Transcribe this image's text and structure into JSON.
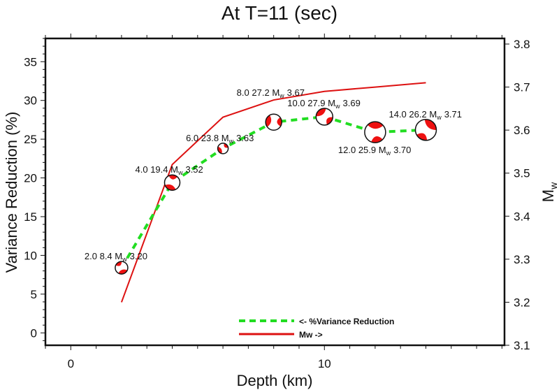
{
  "chart_data": {
    "type": "line",
    "title": "At T=11 (sec)",
    "xlabel": "Depth (km)",
    "ylabel": "Variance Reduction (%)",
    "y2label": "M",
    "y2label_sub": "w",
    "xlim": [
      -1,
      17.1
    ],
    "ylim": [
      -1.6,
      38
    ],
    "y2lim": [
      3.1,
      3.813
    ],
    "x_ticks": [
      0,
      10
    ],
    "y_ticks": [
      0,
      5,
      10,
      15,
      20,
      25,
      30,
      35
    ],
    "y2_ticks": [
      "3.1",
      "3.2",
      "3.3",
      "3.4",
      "3.5",
      "3.6",
      "3.7",
      "3.8"
    ],
    "x": [
      2,
      4,
      6,
      8,
      10,
      12,
      14
    ],
    "series": [
      {
        "name": "<- %Variance Reduction",
        "axis": "left",
        "color": "#22dd22",
        "style": "dashed",
        "values": [
          8.4,
          19.4,
          23.8,
          27.2,
          27.9,
          25.9,
          26.2
        ]
      },
      {
        "name": "Mw ->",
        "axis": "right",
        "color": "#dd1111",
        "style": "solid",
        "values": [
          3.2,
          3.52,
          3.63,
          3.67,
          3.69,
          3.7,
          3.71
        ]
      }
    ],
    "point_labels": [
      {
        "depth": "2.0",
        "vr": "8.4",
        "mw": "3.20"
      },
      {
        "depth": "4.0",
        "vr": "19.4",
        "mw": "3.52"
      },
      {
        "depth": "6.0",
        "vr": "23.8",
        "mw": "3.63"
      },
      {
        "depth": "8.0",
        "vr": "27.2",
        "mw": "3.67"
      },
      {
        "depth": "10.0",
        "vr": "27.9",
        "mw": "3.69"
      },
      {
        "depth": "12.0",
        "vr": "25.9",
        "mw": "3.70"
      },
      {
        "depth": "14.0",
        "vr": "26.2",
        "mw": "3.71"
      }
    ],
    "marker": "focal-mechanism beachball",
    "legend_position": "bottom-center"
  }
}
